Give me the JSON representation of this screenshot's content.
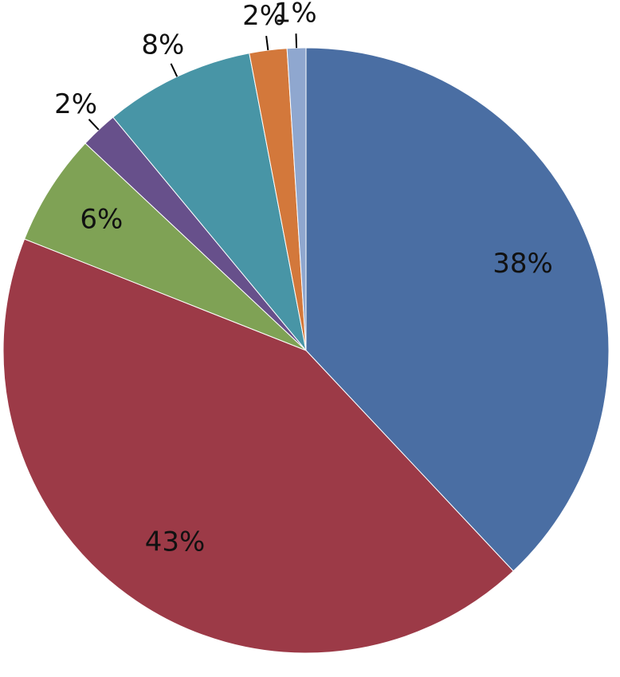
{
  "chart_data": {
    "type": "pie",
    "values": [
      38,
      43,
      6,
      2,
      8,
      2,
      1
    ],
    "value_labels": [
      "38%",
      "43%",
      "6%",
      "2%",
      "8%",
      "2%",
      "1%"
    ],
    "colors": [
      "#4a6ea3",
      "#9c3a47",
      "#7fa255",
      "#67508b",
      "#4895a6",
      "#d3783b",
      "#8fa7cf"
    ]
  }
}
